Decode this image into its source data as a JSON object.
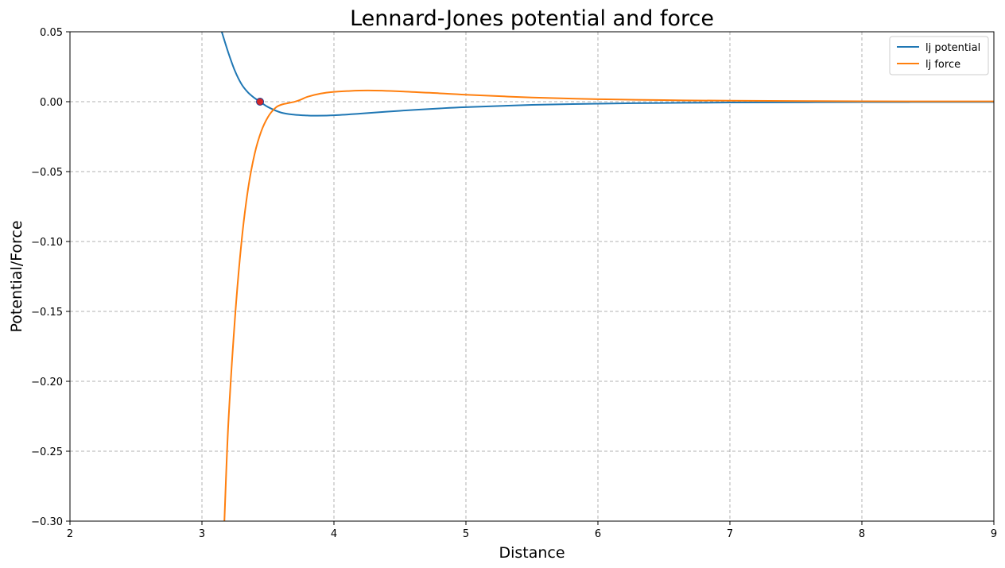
{
  "chart_data": {
    "type": "line",
    "title": "Lennard-Jones potential and force",
    "xlabel": "Distance",
    "ylabel": "Potential/Force",
    "xlim": [
      2,
      9
    ],
    "ylim": [
      -0.3,
      0.05
    ],
    "x_ticks": [
      2,
      3,
      4,
      5,
      6,
      7,
      8,
      9
    ],
    "x_tick_labels": [
      "2",
      "3",
      "4",
      "5",
      "6",
      "7",
      "8",
      "9"
    ],
    "y_ticks": [
      0.05,
      0.0,
      -0.05,
      -0.1,
      -0.15,
      -0.2,
      -0.25,
      -0.3
    ],
    "y_tick_labels": [
      "0.05",
      "0.00",
      "−0.05",
      "−0.10",
      "−0.15",
      "−0.20",
      "−0.25",
      "−0.30"
    ],
    "grid": true,
    "legend_position": "top-right",
    "series": [
      {
        "name": "lj potential",
        "color": "#1f77b4",
        "points": [
          [
            3.15,
            0.05
          ],
          [
            3.2,
            0.035
          ],
          [
            3.25,
            0.022
          ],
          [
            3.3,
            0.0125
          ],
          [
            3.35,
            0.0065
          ],
          [
            3.4,
            0.0025
          ],
          [
            3.44,
            0.0
          ],
          [
            3.5,
            -0.0038
          ],
          [
            3.6,
            -0.0078
          ],
          [
            3.7,
            -0.0093
          ],
          [
            3.8,
            -0.0099
          ],
          [
            3.86,
            -0.01
          ],
          [
            4.0,
            -0.0097
          ],
          [
            4.2,
            -0.0085
          ],
          [
            4.5,
            -0.0065
          ],
          [
            4.8,
            -0.0048
          ],
          [
            5.0,
            -0.0039
          ],
          [
            5.5,
            -0.0023
          ],
          [
            6.0,
            -0.0014
          ],
          [
            6.5,
            -0.0009
          ],
          [
            7.0,
            -0.0006
          ],
          [
            8.0,
            -0.0003
          ],
          [
            9.0,
            -0.0002
          ]
        ]
      },
      {
        "name": "lj force",
        "color": "#ff7f0e",
        "points": [
          [
            3.17,
            -0.3
          ],
          [
            3.2,
            -0.23
          ],
          [
            3.25,
            -0.155
          ],
          [
            3.3,
            -0.1
          ],
          [
            3.35,
            -0.062
          ],
          [
            3.4,
            -0.037
          ],
          [
            3.45,
            -0.021
          ],
          [
            3.5,
            -0.011
          ],
          [
            3.55,
            -0.005
          ],
          [
            3.6,
            -0.0022
          ],
          [
            3.7,
            -0.0001
          ],
          [
            3.75,
            0.0015
          ],
          [
            3.8,
            0.0035
          ],
          [
            3.9,
            0.0058
          ],
          [
            4.0,
            0.007
          ],
          [
            4.1,
            0.0076
          ],
          [
            4.26,
            0.008
          ],
          [
            4.5,
            0.0074
          ],
          [
            4.8,
            0.006
          ],
          [
            5.0,
            0.005
          ],
          [
            5.5,
            0.003
          ],
          [
            6.0,
            0.0018
          ],
          [
            6.5,
            0.0011
          ],
          [
            7.0,
            0.0007
          ],
          [
            8.0,
            0.0003
          ],
          [
            9.0,
            0.0002
          ]
        ]
      }
    ],
    "marker": {
      "x": 3.44,
      "y": 0.0,
      "color": "#d62728"
    }
  }
}
